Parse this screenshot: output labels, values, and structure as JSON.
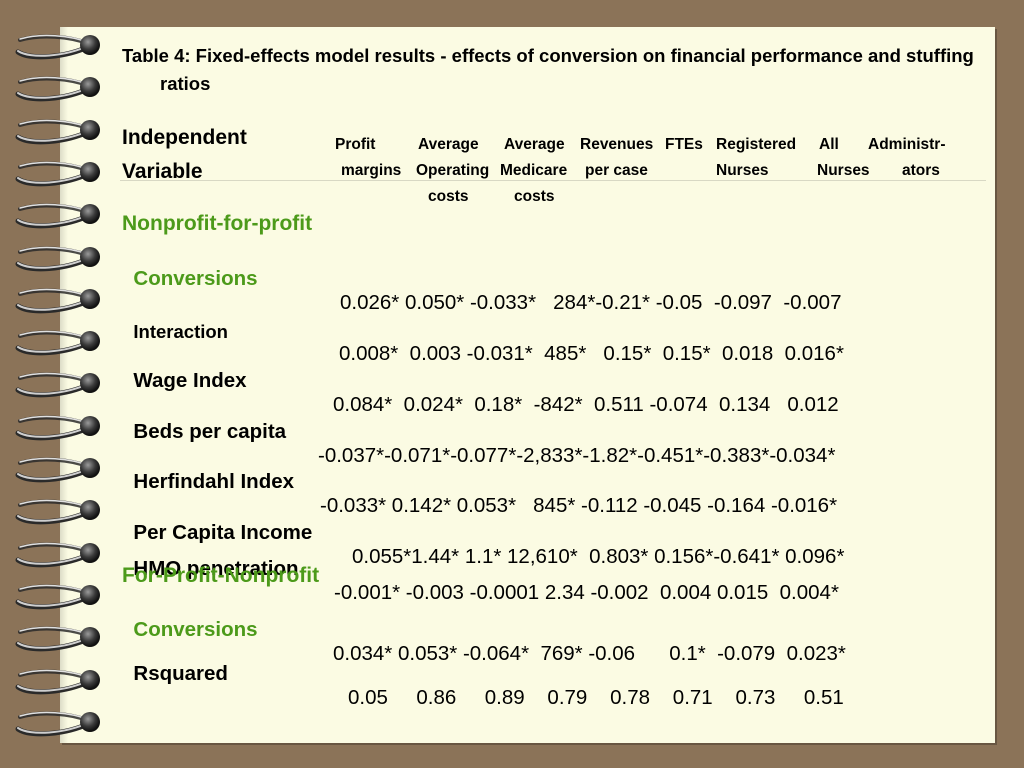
{
  "title": "Table 4: Fixed-effects model results - effects of conversion on financial performance and stuffing ratios",
  "header": {
    "line1": "Independent",
    "line2": "Variable",
    "columns": [
      {
        "label": "Profit margins"
      },
      {
        "label": "Average Operating costs"
      },
      {
        "label": "Average Medicare costs"
      },
      {
        "label": "Revenues per case"
      },
      {
        "label": "FTEs"
      },
      {
        "label": "Registered Nurses"
      },
      {
        "label": "All Nurses"
      },
      {
        "label": "Administr-ators"
      }
    ]
  },
  "sections": {
    "nonprofit_title": "Nonprofit-for-profit",
    "forprofit_title": "For-Profit-Nonprofit"
  },
  "rows": [
    {
      "label": "Conversions",
      "values": "0.026* 0.050* -0.033*   284*-0.21* -0.05  -0.097  -0.007"
    },
    {
      "label": "Interaction",
      "values": "0.008*  0.003 -0.031*  485*   0.15*  0.15*  0.018  0.016*"
    },
    {
      "label": "Wage Index",
      "values": "0.084*  0.024*  0.18*  -842*  0.511 -0.074  0.134   0.012"
    },
    {
      "label": "Beds per capita",
      "values": "-0.037*-0.071*-0.077*-2,833*-1.82*-0.451*-0.383*-0.034*"
    },
    {
      "label": "Herfindahl Index",
      "values": "-0.033* 0.142* 0.053*   845* -0.112 -0.045 -0.164 -0.016*"
    },
    {
      "label": "Per Capita Income",
      "values": "0.055*1.44* 1.1* 12,610*  0.803* 0.156*-0.641* 0.096*"
    },
    {
      "label": "HMO penetration",
      "values": "-0.001* -0.003 -0.0001 2.34 -0.002  0.004 0.015  0.004*"
    },
    {
      "label": "Conversions",
      "values": "0.034* 0.053* -0.064*  769* -0.06      0.1*  -0.079  0.023*"
    },
    {
      "label": "Rsquared",
      "values": "0.05     0.86     0.89    0.79    0.78    0.71    0.73     0.51"
    }
  ]
}
